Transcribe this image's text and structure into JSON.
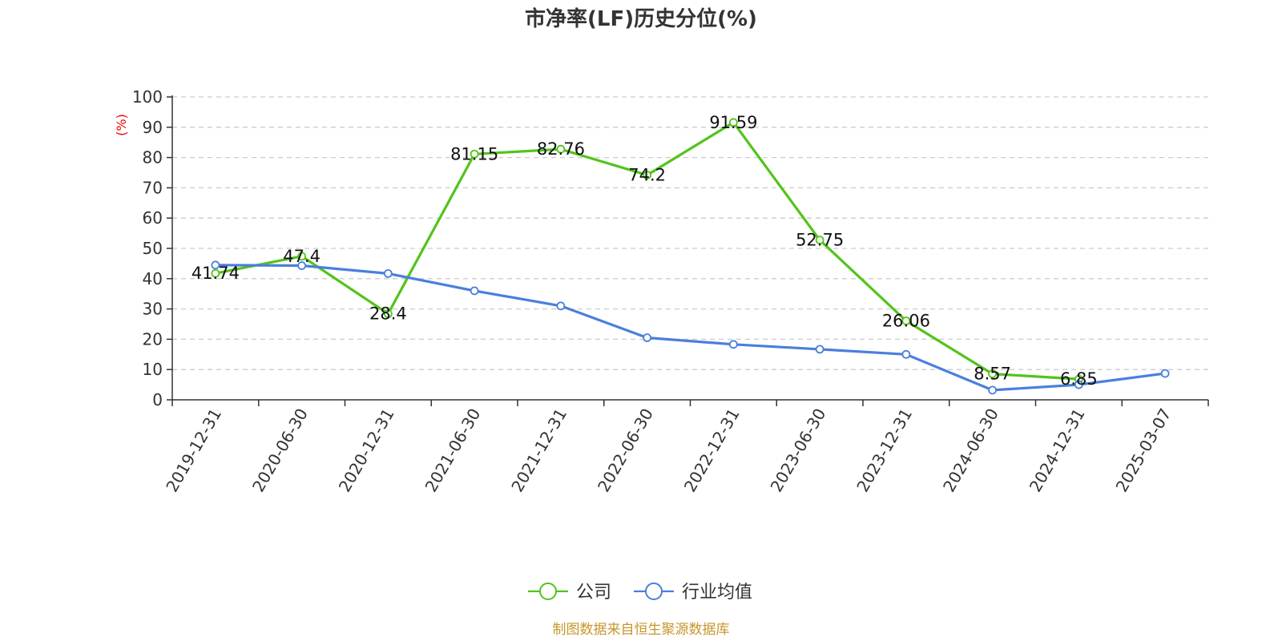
{
  "chart_data": {
    "type": "line",
    "title": "市净率(LF)历史分位(%)",
    "ylabel": "(%)",
    "xlabel": "",
    "ylim": [
      0,
      100
    ],
    "yticks": [
      0,
      10,
      20,
      30,
      40,
      50,
      60,
      70,
      80,
      90,
      100
    ],
    "grid": "horizontal-dashed",
    "legend_position": "bottom-center",
    "categories": [
      "2019-12-31",
      "2020-06-30",
      "2020-12-31",
      "2021-06-30",
      "2021-12-31",
      "2022-06-30",
      "2022-12-31",
      "2023-06-30",
      "2023-12-31",
      "2024-06-30",
      "2024-12-31",
      "2025-03-07"
    ],
    "series": [
      {
        "name": "公司",
        "color": "#52c41a",
        "values": [
          41.74,
          47.4,
          28.4,
          81.15,
          82.76,
          74.2,
          91.59,
          52.75,
          26.06,
          8.57,
          6.85,
          null
        ],
        "labels": [
          "41.74",
          "47.4",
          "28.4",
          "81.15",
          "82.76",
          "74.2",
          "91.59",
          "52.75",
          "26.06",
          "8.57",
          "6.85",
          ""
        ]
      },
      {
        "name": "行业均值",
        "color": "#4a7fdc",
        "values": [
          44.5,
          44.3,
          41.7,
          36.0,
          31.0,
          20.5,
          18.3,
          16.7,
          15.0,
          3.2,
          5.0,
          8.7
        ]
      }
    ]
  },
  "source": "制图数据来自恒生聚源数据库"
}
